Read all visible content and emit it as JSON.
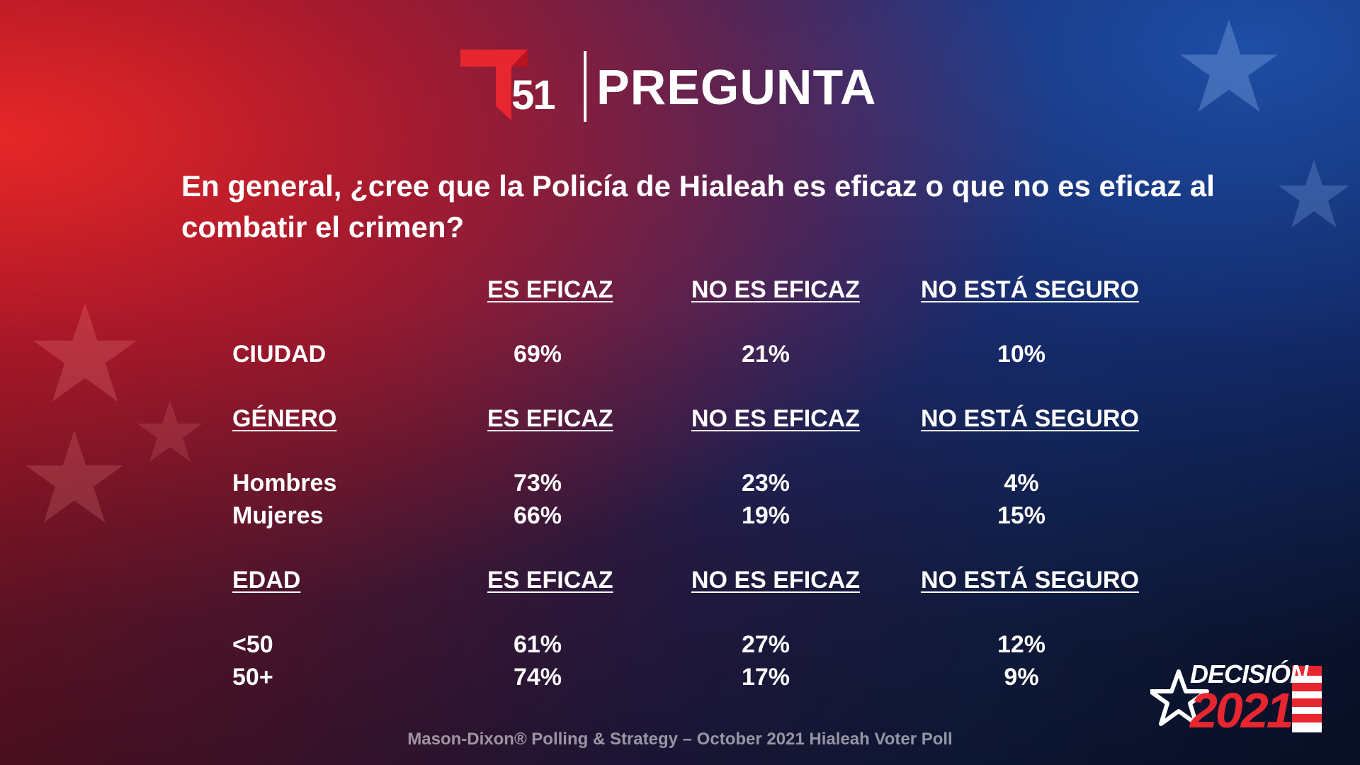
{
  "header": {
    "logo_icon": "telemundo-t-logo-icon",
    "logo_number": "51",
    "title": "PREGUNTA"
  },
  "question": "En general, ¿cree que la Policía de Hialeah es eficaz o que no es eficaz al combatir el crimen?",
  "colors": {
    "accent_red": "#e8262f",
    "background_red": "#8a1424",
    "background_blue": "#14224d",
    "text": "#ffffff"
  },
  "chart_data": {
    "type": "table",
    "columns": [
      "ES EFICAZ",
      "NO ES EFICAZ",
      "NO ESTÁ SEGURO"
    ],
    "sections": [
      {
        "heading": "",
        "rows": [
          {
            "label": "CIUDAD",
            "values": [
              "69%",
              "21%",
              "10%"
            ]
          }
        ]
      },
      {
        "heading": "GÉNERO",
        "rows": [
          {
            "label": "Hombres",
            "values": [
              "73%",
              "23%",
              "4%"
            ]
          },
          {
            "label": "Mujeres",
            "values": [
              "66%",
              "19%",
              "15%"
            ]
          }
        ]
      },
      {
        "heading": "EDAD",
        "rows": [
          {
            "label": "<50",
            "values": [
              "61%",
              "27%",
              "12%"
            ]
          },
          {
            "label": "50+",
            "values": [
              "74%",
              "17%",
              "9%"
            ]
          }
        ]
      }
    ]
  },
  "source": "Mason-Dixon® Polling & Strategy – October 2021 Hialeah Voter Poll",
  "badge": {
    "icon": "star-icon",
    "word": "DECISIÓN",
    "year": "2021"
  }
}
